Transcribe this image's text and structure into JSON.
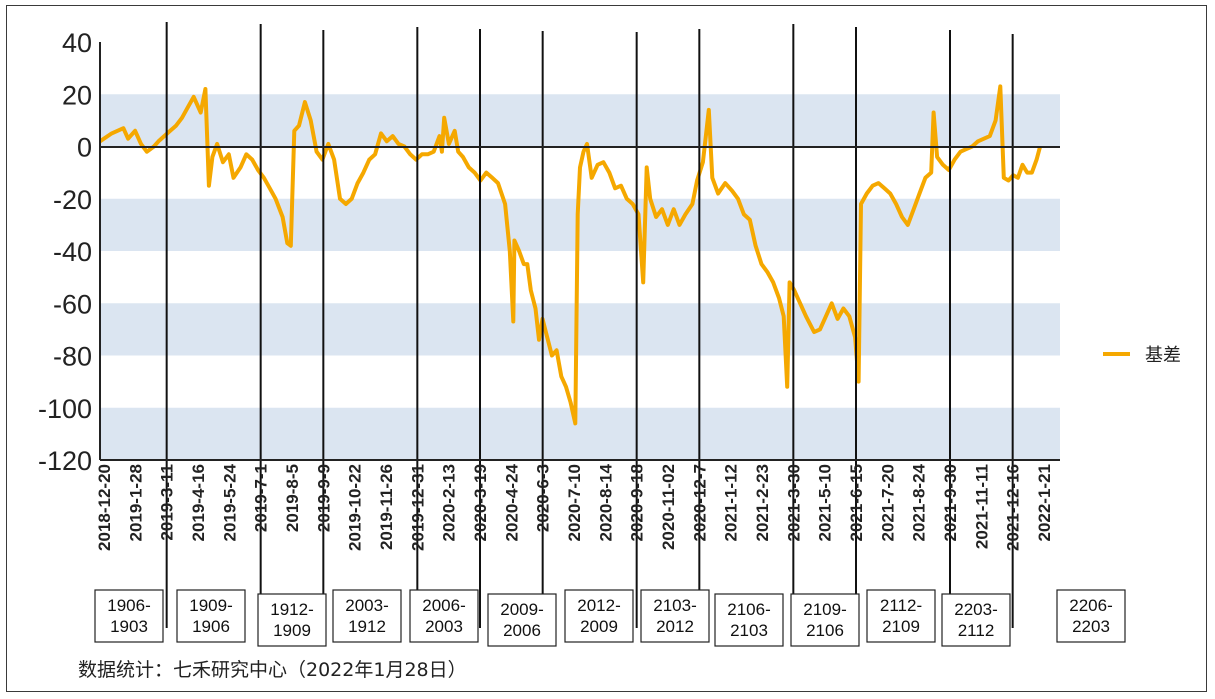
{
  "source_note": "数据统计：七禾研究中心（2022年1月28日）",
  "chart_data": {
    "type": "line",
    "title": "",
    "xlabel": "",
    "ylabel": "",
    "ylim": [
      -120,
      40
    ],
    "yticks": [
      40,
      20,
      0,
      -20,
      -40,
      -60,
      -80,
      -100,
      -120
    ],
    "shaded_bands": [
      [
        0,
        20
      ],
      [
        -40,
        -20
      ],
      [
        -80,
        -60
      ],
      [
        -120,
        -100
      ]
    ],
    "band_color": "#dbe5f1",
    "line_color": "#f5a800",
    "legend": {
      "position": "right",
      "entries": [
        "基差"
      ]
    },
    "x_tick_labels": [
      "2018-12-20",
      "2019-1-28",
      "2019-3-11",
      "2019-4-16",
      "2019-5-24",
      "2019-7-1",
      "2019-8-5",
      "2019-9-9",
      "2019-10-22",
      "2019-11-26",
      "2019-12-31",
      "2020-2-13",
      "2020-3-19",
      "2020-4-24",
      "2020-6-3",
      "2020-7-10",
      "2020-8-14",
      "2020-9-18",
      "2020-11-02",
      "2020-12-7",
      "2021-1-12",
      "2021-2-23",
      "2021-3-30",
      "2021-5-10",
      "2021-6-15",
      "2021-7-20",
      "2021-8-24",
      "2021-9-30",
      "2021-11-11",
      "2021-12-16",
      "2022-1-21"
    ],
    "contract_switch_labels": [
      "2019-3-11",
      "2019-7-1",
      "2019-9-9",
      "2019-12-31",
      "2020-3-19",
      "2020-6-3",
      "2020-9-18",
      "2020-12-7",
      "2021-3-30",
      "2021-6-15",
      "2021-9-30",
      "2021-12-16"
    ],
    "spread_labels": [
      "1906-\n1903",
      "1909-\n1906",
      "1912-\n1909",
      "2003-\n1912",
      "2006-\n2003",
      "2009-\n2006",
      "2012-\n2009",
      "2103-\n2012",
      "2106-\n2103",
      "2109-\n2106",
      "2112-\n2109",
      "2203-\n2112",
      "2206-\n2203"
    ],
    "series": [
      {
        "name": "基差",
        "points": [
          [
            0,
            2
          ],
          [
            1,
            5
          ],
          [
            2,
            7
          ],
          [
            2.4,
            3
          ],
          [
            3,
            6
          ],
          [
            3.5,
            1
          ],
          [
            4,
            -2
          ],
          [
            4.6,
            0
          ],
          [
            5,
            2
          ],
          [
            6,
            6
          ],
          [
            6.5,
            8
          ],
          [
            7,
            11
          ],
          [
            7.5,
            15
          ],
          [
            8,
            19
          ],
          [
            8.6,
            13
          ],
          [
            9,
            22
          ],
          [
            9.3,
            -15
          ],
          [
            9.6,
            -4
          ],
          [
            10,
            1
          ],
          [
            10.5,
            -6
          ],
          [
            11,
            -3
          ],
          [
            11.4,
            -12
          ],
          [
            12,
            -8
          ],
          [
            12.5,
            -3
          ],
          [
            13,
            -5
          ],
          [
            13.5,
            -9
          ],
          [
            14,
            -12
          ],
          [
            14.5,
            -16
          ],
          [
            15,
            -20
          ],
          [
            15.6,
            -27
          ],
          [
            16,
            -37
          ],
          [
            16.3,
            -38
          ],
          [
            16.6,
            6
          ],
          [
            17,
            8
          ],
          [
            17.5,
            17
          ],
          [
            18,
            10
          ],
          [
            18.5,
            -2
          ],
          [
            19,
            -5
          ],
          [
            19.5,
            1
          ],
          [
            20,
            -5
          ],
          [
            20.5,
            -20
          ],
          [
            21,
            -22
          ],
          [
            21.5,
            -20
          ],
          [
            22,
            -14
          ],
          [
            22.5,
            -10
          ],
          [
            23,
            -5
          ],
          [
            23.5,
            -3
          ],
          [
            24,
            5
          ],
          [
            24.5,
            2
          ],
          [
            25,
            4
          ],
          [
            25.5,
            1
          ],
          [
            26,
            0
          ],
          [
            26.5,
            -3
          ],
          [
            27,
            -5
          ],
          [
            27.5,
            -3
          ],
          [
            28,
            -3
          ],
          [
            28.5,
            -2
          ],
          [
            29,
            4
          ],
          [
            29.2,
            -2
          ],
          [
            29.4,
            11
          ],
          [
            29.8,
            1
          ],
          [
            30.3,
            6
          ],
          [
            30.6,
            -2
          ],
          [
            31,
            -4
          ],
          [
            31.5,
            -8
          ],
          [
            32,
            -10
          ],
          [
            32.5,
            -13
          ],
          [
            33,
            -10
          ],
          [
            33.5,
            -12
          ],
          [
            34,
            -14
          ],
          [
            34.6,
            -22
          ],
          [
            35,
            -40
          ],
          [
            35.3,
            -67
          ],
          [
            35.4,
            -36
          ],
          [
            35.8,
            -40
          ],
          [
            36.2,
            -45
          ],
          [
            36.5,
            -45
          ],
          [
            36.8,
            -55
          ],
          [
            37.2,
            -62
          ],
          [
            37.5,
            -74
          ],
          [
            37.8,
            -66
          ],
          [
            38.2,
            -73
          ],
          [
            38.6,
            -80
          ],
          [
            39,
            -78
          ],
          [
            39.4,
            -88
          ],
          [
            39.8,
            -92
          ],
          [
            40.2,
            -98
          ],
          [
            40.6,
            -106
          ],
          [
            40.8,
            -26
          ],
          [
            41,
            -8
          ],
          [
            41.3,
            -2
          ],
          [
            41.6,
            1
          ],
          [
            42,
            -12
          ],
          [
            42.5,
            -7
          ],
          [
            43,
            -6
          ],
          [
            43.5,
            -10
          ],
          [
            44,
            -16
          ],
          [
            44.5,
            -15
          ],
          [
            45,
            -20
          ],
          [
            45.5,
            -22
          ],
          [
            46,
            -26
          ],
          [
            46.4,
            -52
          ],
          [
            46.7,
            -8
          ],
          [
            47,
            -20
          ],
          [
            47.5,
            -27
          ],
          [
            48,
            -24
          ],
          [
            48.5,
            -30
          ],
          [
            49,
            -24
          ],
          [
            49.5,
            -30
          ],
          [
            50,
            -26
          ],
          [
            50.6,
            -22
          ],
          [
            51,
            -13
          ],
          [
            51.5,
            -6
          ],
          [
            52,
            14
          ],
          [
            52.3,
            -12
          ],
          [
            52.8,
            -18
          ],
          [
            53.4,
            -14
          ],
          [
            54,
            -17
          ],
          [
            54.5,
            -20
          ],
          [
            55,
            -26
          ],
          [
            55.5,
            -28
          ],
          [
            56,
            -38
          ],
          [
            56.5,
            -45
          ],
          [
            57,
            -48
          ],
          [
            57.5,
            -52
          ],
          [
            58,
            -58
          ],
          [
            58.4,
            -65
          ],
          [
            58.7,
            -92
          ],
          [
            58.9,
            -52
          ],
          [
            59.3,
            -55
          ],
          [
            59.8,
            -60
          ],
          [
            60.3,
            -65
          ],
          [
            61,
            -71
          ],
          [
            61.5,
            -70
          ],
          [
            62,
            -65
          ],
          [
            62.5,
            -60
          ],
          [
            63,
            -66
          ],
          [
            63.5,
            -62
          ],
          [
            64,
            -65
          ],
          [
            64.5,
            -73
          ],
          [
            64.8,
            -90
          ],
          [
            65,
            -22
          ],
          [
            65.5,
            -18
          ],
          [
            66,
            -15
          ],
          [
            66.5,
            -14
          ],
          [
            67,
            -16
          ],
          [
            67.5,
            -18
          ],
          [
            68,
            -22
          ],
          [
            68.5,
            -27
          ],
          [
            69,
            -30
          ],
          [
            69.5,
            -24
          ],
          [
            70,
            -18
          ],
          [
            70.5,
            -12
          ],
          [
            71,
            -10
          ],
          [
            71.2,
            13
          ],
          [
            71.5,
            -4
          ],
          [
            72,
            -7
          ],
          [
            72.5,
            -9
          ],
          [
            73,
            -5
          ],
          [
            73.5,
            -2
          ],
          [
            74,
            -1
          ],
          [
            74.5,
            0
          ],
          [
            75,
            2
          ],
          [
            75.5,
            3
          ],
          [
            76,
            4
          ],
          [
            76.5,
            10
          ],
          [
            76.9,
            23
          ],
          [
            77.2,
            -12
          ],
          [
            77.6,
            -13
          ],
          [
            78,
            -11
          ],
          [
            78.4,
            -12
          ],
          [
            78.8,
            -7
          ],
          [
            79.2,
            -10
          ],
          [
            79.6,
            -10
          ],
          [
            80,
            -5
          ],
          [
            80.3,
            0
          ]
        ]
      }
    ],
    "x_domain": [
      0,
      82
    ]
  }
}
